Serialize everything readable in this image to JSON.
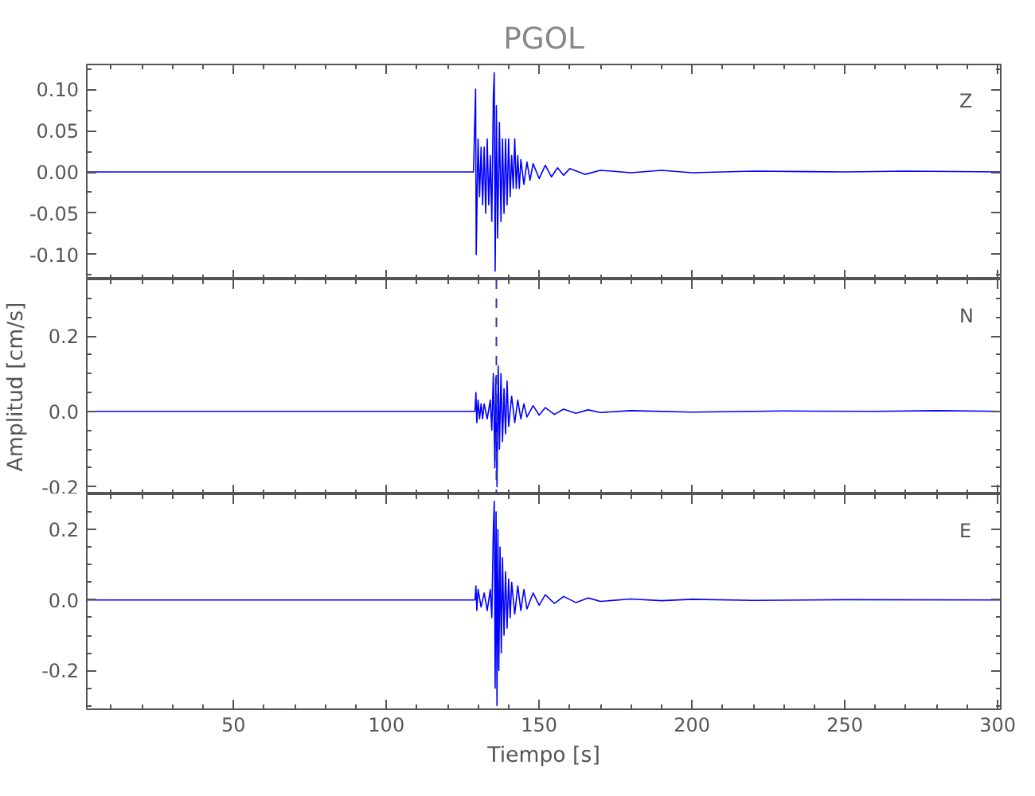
{
  "chart_data": [
    {
      "type": "line",
      "title": "PGOL",
      "annotations": [
        "Z"
      ],
      "tick_labels": "y",
      "xlim": [
        2,
        301
      ],
      "xticks": [
        50,
        100,
        150,
        200,
        250,
        300
      ],
      "ylim": [
        -0.13,
        0.13
      ],
      "yticks": [
        {
          "value": -0.1,
          "label": "-0.10"
        },
        {
          "value": -0.05,
          "label": "-0.05"
        },
        {
          "value": 0,
          "label": "0.00"
        },
        {
          "value": 0.05,
          "label": "0.05"
        },
        {
          "value": 0.1,
          "label": "0.10"
        }
      ],
      "x": [
        2,
        50,
        100,
        128.5,
        129.2,
        129.4,
        130,
        130.5,
        131,
        131.5,
        132,
        132.5,
        133,
        133.5,
        134,
        134.5,
        135,
        135.3,
        135.6,
        136,
        136.4,
        137,
        137.5,
        138,
        138.5,
        139,
        139.5,
        140,
        140.5,
        141,
        141.5,
        142,
        142.5,
        143,
        143.5,
        144,
        145,
        146,
        147,
        148,
        150,
        152,
        154,
        156,
        158,
        160,
        165,
        170,
        180,
        190,
        200,
        220,
        250,
        270,
        301
      ],
      "series": [
        {
          "color": "#0000ff",
          "values": [
            0,
            0,
            0,
            0,
            0.1,
            -0.1,
            0.04,
            -0.03,
            0.03,
            -0.04,
            0.03,
            -0.05,
            0.04,
            -0.04,
            0.02,
            -0.06,
            0.09,
            0.12,
            -0.12,
            0.08,
            -0.08,
            0.06,
            -0.06,
            0.04,
            -0.05,
            0.04,
            -0.04,
            0.04,
            -0.03,
            0.02,
            -0.02,
            0.04,
            -0.02,
            0.02,
            -0.02,
            0.015,
            -0.015,
            0.012,
            -0.01,
            0.01,
            -0.008,
            0.008,
            -0.006,
            0.005,
            -0.004,
            0.004,
            -0.003,
            0.002,
            -0.001,
            0.002,
            -0.001,
            0.001,
            0,
            0.001,
            0
          ]
        }
      ]
    },
    {
      "type": "line",
      "ylabel": "Amplitud [cm/s]",
      "annotations": [
        "N"
      ],
      "tick_labels": "y",
      "xlim": [
        2,
        301
      ],
      "xticks": [
        50,
        100,
        150,
        200,
        250,
        300
      ],
      "ylim": [
        -0.22,
        0.35
      ],
      "yticks": [
        {
          "value": -0.2,
          "label": "-0.2"
        },
        {
          "value": 0,
          "label": "0.0"
        },
        {
          "value": 0.2,
          "label": "0.2"
        }
      ],
      "ref_lines": [
        {
          "axis": "x",
          "value": 136,
          "color": "#3333aa",
          "line_style": "dashed"
        }
      ],
      "x": [
        2,
        50,
        100,
        129,
        129.3,
        129.6,
        130,
        130.5,
        131,
        131.5,
        132,
        133,
        134,
        134.5,
        135,
        135.5,
        135.8,
        136.2,
        136.6,
        137,
        137.5,
        138,
        138.5,
        139,
        139.5,
        140,
        141,
        142,
        143,
        144,
        145,
        146,
        148,
        150,
        152,
        155,
        158,
        162,
        166,
        170,
        180,
        200,
        230,
        260,
        280,
        301
      ],
      "series": [
        {
          "color": "#0000ff",
          "values": [
            0,
            0,
            0,
            0,
            0.05,
            -0.03,
            0.03,
            -0.02,
            0.02,
            -0.02,
            0.02,
            -0.02,
            0.03,
            -0.05,
            0.1,
            -0.15,
            0.09,
            -0.2,
            0.12,
            -0.1,
            0.1,
            -0.08,
            0.06,
            -0.06,
            0.08,
            -0.04,
            0.04,
            -0.03,
            0.03,
            -0.02,
            0.02,
            -0.015,
            0.015,
            -0.01,
            0.01,
            -0.008,
            0.006,
            -0.005,
            0.004,
            -0.003,
            0.002,
            -0.002,
            0.001,
            0,
            0.002,
            0
          ]
        }
      ]
    },
    {
      "type": "line",
      "xlabel": "Tiempo [s]",
      "annotations": [
        "E"
      ],
      "xlim": [
        2,
        301
      ],
      "xticks": [
        50,
        100,
        150,
        200,
        250,
        300
      ],
      "ylim": [
        -0.31,
        0.3
      ],
      "yticks": [
        {
          "value": -0.2,
          "label": "-0.2"
        },
        {
          "value": 0,
          "label": "0.0"
        },
        {
          "value": 0.2,
          "label": "0.2"
        }
      ],
      "x": [
        2,
        50,
        100,
        129,
        129.3,
        129.6,
        130,
        131,
        132,
        133,
        134,
        134.5,
        135,
        135.3,
        135.6,
        135.9,
        136.2,
        136.5,
        136.8,
        137.2,
        137.6,
        138,
        138.5,
        139,
        139.5,
        140,
        140.5,
        141,
        142,
        143,
        144,
        145,
        146,
        148,
        150,
        152,
        155,
        158,
        162,
        166,
        170,
        180,
        190,
        200,
        220,
        250,
        301
      ],
      "series": [
        {
          "color": "#0000ff",
          "values": [
            0,
            0,
            0,
            0,
            0.04,
            -0.03,
            0.03,
            -0.02,
            0.02,
            -0.03,
            0.03,
            -0.05,
            0.2,
            0.28,
            -0.25,
            0.25,
            -0.3,
            0.2,
            -0.2,
            0.15,
            -0.15,
            0.12,
            -0.1,
            0.08,
            -0.08,
            0.06,
            -0.05,
            0.05,
            -0.04,
            0.04,
            -0.03,
            0.03,
            -0.025,
            0.02,
            -0.015,
            0.015,
            -0.01,
            0.01,
            -0.007,
            0.006,
            -0.004,
            0.003,
            -0.002,
            0.002,
            -0.001,
            0.001,
            0
          ]
        }
      ]
    }
  ]
}
